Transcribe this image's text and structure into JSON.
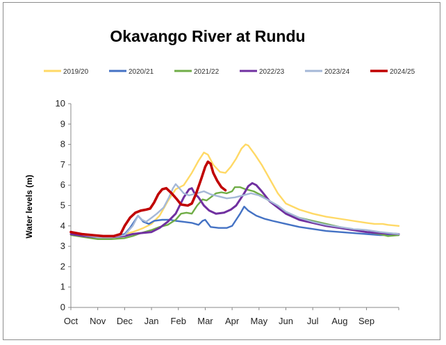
{
  "chart_data": {
    "type": "line",
    "title": "Okavango River at Rundu",
    "xlabel": "",
    "ylabel": "Water levels (m)",
    "ylim": [
      0,
      10
    ],
    "yticks": [
      "0",
      "1",
      "2",
      "3",
      "4",
      "5",
      "6",
      "7",
      "8",
      "9",
      "10"
    ],
    "months": [
      "Oct",
      "Nov",
      "Dec",
      "Jan",
      "Feb",
      "Mar",
      "Apr",
      "May",
      "Jun",
      "Jul",
      "Aug",
      "Sep"
    ],
    "x_unit": "months since 1 Oct (0 = Oct)",
    "xlim": [
      0,
      12.2
    ],
    "grid": false,
    "legend_position": "top",
    "series": [
      {
        "name": "2019/20",
        "color": "#FFD966",
        "points": [
          [
            0,
            3.7
          ],
          [
            0.5,
            3.6
          ],
          [
            1,
            3.5
          ],
          [
            1.5,
            3.5
          ],
          [
            2,
            3.6
          ],
          [
            2.3,
            3.7
          ],
          [
            2.5,
            3.8
          ],
          [
            2.7,
            3.9
          ],
          [
            3,
            4.1
          ],
          [
            3.3,
            4.5
          ],
          [
            3.6,
            5.2
          ],
          [
            3.9,
            5.8
          ],
          [
            4.2,
            6.0
          ],
          [
            4.5,
            6.6
          ],
          [
            4.75,
            7.2
          ],
          [
            4.95,
            7.6
          ],
          [
            5.1,
            7.5
          ],
          [
            5.3,
            7.0
          ],
          [
            5.55,
            6.65
          ],
          [
            5.75,
            6.6
          ],
          [
            5.95,
            6.9
          ],
          [
            6.15,
            7.3
          ],
          [
            6.35,
            7.8
          ],
          [
            6.5,
            8.0
          ],
          [
            6.6,
            7.95
          ],
          [
            6.85,
            7.5
          ],
          [
            7.1,
            7.0
          ],
          [
            7.4,
            6.3
          ],
          [
            7.7,
            5.6
          ],
          [
            8,
            5.1
          ],
          [
            8.5,
            4.8
          ],
          [
            9,
            4.6
          ],
          [
            9.5,
            4.45
          ],
          [
            10,
            4.35
          ],
          [
            10.5,
            4.25
          ],
          [
            11,
            4.15
          ],
          [
            11.3,
            4.1
          ],
          [
            11.6,
            4.1
          ],
          [
            11.8,
            4.05
          ],
          [
            12.2,
            4.0
          ]
        ]
      },
      {
        "name": "2020/21",
        "color": "#4472C4",
        "points": [
          [
            0,
            3.7
          ],
          [
            0.5,
            3.55
          ],
          [
            1,
            3.5
          ],
          [
            1.5,
            3.45
          ],
          [
            2,
            3.6
          ],
          [
            2.2,
            3.9
          ],
          [
            2.4,
            4.3
          ],
          [
            2.5,
            4.5
          ],
          [
            2.7,
            4.2
          ],
          [
            2.9,
            4.1
          ],
          [
            3.1,
            4.25
          ],
          [
            3.4,
            4.3
          ],
          [
            3.7,
            4.3
          ],
          [
            3.9,
            4.25
          ],
          [
            4.2,
            4.2
          ],
          [
            4.5,
            4.15
          ],
          [
            4.75,
            4.05
          ],
          [
            4.9,
            4.25
          ],
          [
            5.0,
            4.3
          ],
          [
            5.2,
            3.95
          ],
          [
            5.5,
            3.9
          ],
          [
            5.8,
            3.9
          ],
          [
            6.0,
            4.0
          ],
          [
            6.15,
            4.3
          ],
          [
            6.3,
            4.6
          ],
          [
            6.45,
            4.95
          ],
          [
            6.6,
            4.75
          ],
          [
            6.9,
            4.5
          ],
          [
            7.2,
            4.35
          ],
          [
            7.5,
            4.25
          ],
          [
            8,
            4.1
          ],
          [
            8.5,
            3.95
          ],
          [
            9,
            3.85
          ],
          [
            9.5,
            3.75
          ],
          [
            10,
            3.7
          ],
          [
            10.5,
            3.65
          ],
          [
            11,
            3.6
          ],
          [
            11.5,
            3.55
          ],
          [
            12.2,
            3.55
          ]
        ]
      },
      {
        "name": "2021/22",
        "color": "#70AD47",
        "points": [
          [
            0,
            3.55
          ],
          [
            0.5,
            3.45
          ],
          [
            1,
            3.35
          ],
          [
            1.5,
            3.35
          ],
          [
            2,
            3.4
          ],
          [
            2.3,
            3.5
          ],
          [
            2.6,
            3.65
          ],
          [
            3,
            3.8
          ],
          [
            3.3,
            3.95
          ],
          [
            3.6,
            4.05
          ],
          [
            3.9,
            4.3
          ],
          [
            4.1,
            4.6
          ],
          [
            4.3,
            4.65
          ],
          [
            4.5,
            4.6
          ],
          [
            4.7,
            5.0
          ],
          [
            4.9,
            5.3
          ],
          [
            5.05,
            5.25
          ],
          [
            5.2,
            5.4
          ],
          [
            5.4,
            5.6
          ],
          [
            5.6,
            5.65
          ],
          [
            5.8,
            5.6
          ],
          [
            6.0,
            5.7
          ],
          [
            6.1,
            5.9
          ],
          [
            6.3,
            5.9
          ],
          [
            6.5,
            5.8
          ],
          [
            6.8,
            5.7
          ],
          [
            7.1,
            5.5
          ],
          [
            7.4,
            5.2
          ],
          [
            7.7,
            4.9
          ],
          [
            8,
            4.65
          ],
          [
            8.5,
            4.4
          ],
          [
            9,
            4.25
          ],
          [
            9.5,
            4.1
          ],
          [
            10,
            3.95
          ],
          [
            10.5,
            3.8
          ],
          [
            11,
            3.7
          ],
          [
            11.5,
            3.6
          ],
          [
            11.8,
            3.5
          ],
          [
            12.2,
            3.55
          ]
        ]
      },
      {
        "name": "2022/23",
        "color": "#7030A0",
        "points": [
          [
            0,
            3.6
          ],
          [
            0.5,
            3.5
          ],
          [
            1,
            3.45
          ],
          [
            1.5,
            3.45
          ],
          [
            2,
            3.5
          ],
          [
            2.3,
            3.6
          ],
          [
            2.6,
            3.65
          ],
          [
            3,
            3.7
          ],
          [
            3.3,
            3.9
          ],
          [
            3.6,
            4.2
          ],
          [
            3.9,
            4.6
          ],
          [
            4.05,
            5.0
          ],
          [
            4.2,
            5.4
          ],
          [
            4.4,
            5.8
          ],
          [
            4.5,
            5.85
          ],
          [
            4.6,
            5.6
          ],
          [
            4.75,
            5.4
          ],
          [
            4.95,
            5.0
          ],
          [
            5.15,
            4.75
          ],
          [
            5.4,
            4.6
          ],
          [
            5.7,
            4.65
          ],
          [
            5.95,
            4.8
          ],
          [
            6.15,
            5.0
          ],
          [
            6.3,
            5.3
          ],
          [
            6.45,
            5.6
          ],
          [
            6.6,
            5.95
          ],
          [
            6.75,
            6.1
          ],
          [
            6.9,
            6.0
          ],
          [
            7.1,
            5.7
          ],
          [
            7.4,
            5.2
          ],
          [
            7.7,
            4.9
          ],
          [
            8,
            4.6
          ],
          [
            8.5,
            4.3
          ],
          [
            9,
            4.15
          ],
          [
            9.5,
            4.0
          ],
          [
            10,
            3.9
          ],
          [
            10.5,
            3.8
          ],
          [
            11,
            3.7
          ],
          [
            11.5,
            3.65
          ],
          [
            12.2,
            3.6
          ]
        ]
      },
      {
        "name": "2023/24",
        "color": "#A5B8D7",
        "points": [
          [
            0,
            3.7
          ],
          [
            0.5,
            3.55
          ],
          [
            1,
            3.45
          ],
          [
            1.5,
            3.45
          ],
          [
            2,
            3.55
          ],
          [
            2.3,
            4.0
          ],
          [
            2.5,
            4.5
          ],
          [
            2.65,
            4.3
          ],
          [
            2.8,
            4.2
          ],
          [
            3.0,
            4.4
          ],
          [
            3.2,
            4.6
          ],
          [
            3.45,
            4.9
          ],
          [
            3.65,
            5.4
          ],
          [
            3.8,
            5.85
          ],
          [
            3.9,
            6.05
          ],
          [
            4.0,
            5.9
          ],
          [
            4.2,
            5.6
          ],
          [
            4.4,
            5.5
          ],
          [
            4.7,
            5.6
          ],
          [
            4.95,
            5.7
          ],
          [
            5.2,
            5.55
          ],
          [
            5.5,
            5.45
          ],
          [
            5.8,
            5.35
          ],
          [
            6.1,
            5.4
          ],
          [
            6.4,
            5.5
          ],
          [
            6.7,
            5.6
          ],
          [
            7,
            5.5
          ],
          [
            7.3,
            5.3
          ],
          [
            7.7,
            5.0
          ],
          [
            8,
            4.7
          ],
          [
            8.5,
            4.4
          ],
          [
            9,
            4.2
          ],
          [
            9.5,
            4.05
          ],
          [
            10,
            3.95
          ],
          [
            10.5,
            3.85
          ],
          [
            11,
            3.8
          ],
          [
            11.5,
            3.7
          ],
          [
            12.2,
            3.6
          ]
        ]
      },
      {
        "name": "2024/25",
        "color": "#C00000",
        "points": [
          [
            0,
            3.7
          ],
          [
            0.4,
            3.6
          ],
          [
            0.8,
            3.55
          ],
          [
            1.2,
            3.5
          ],
          [
            1.6,
            3.5
          ],
          [
            1.85,
            3.6
          ],
          [
            2.0,
            4.0
          ],
          [
            2.2,
            4.4
          ],
          [
            2.4,
            4.65
          ],
          [
            2.6,
            4.75
          ],
          [
            2.8,
            4.8
          ],
          [
            2.95,
            4.85
          ],
          [
            3.1,
            5.15
          ],
          [
            3.25,
            5.55
          ],
          [
            3.4,
            5.8
          ],
          [
            3.55,
            5.85
          ],
          [
            3.75,
            5.6
          ],
          [
            3.95,
            5.3
          ],
          [
            4.1,
            5.05
          ],
          [
            4.35,
            5.0
          ],
          [
            4.5,
            5.1
          ],
          [
            4.65,
            5.55
          ],
          [
            4.85,
            6.3
          ],
          [
            5.0,
            6.9
          ],
          [
            5.1,
            7.15
          ],
          [
            5.2,
            7.05
          ],
          [
            5.3,
            6.6
          ],
          [
            5.45,
            6.2
          ],
          [
            5.6,
            5.9
          ],
          [
            5.75,
            5.75
          ]
        ]
      }
    ]
  }
}
